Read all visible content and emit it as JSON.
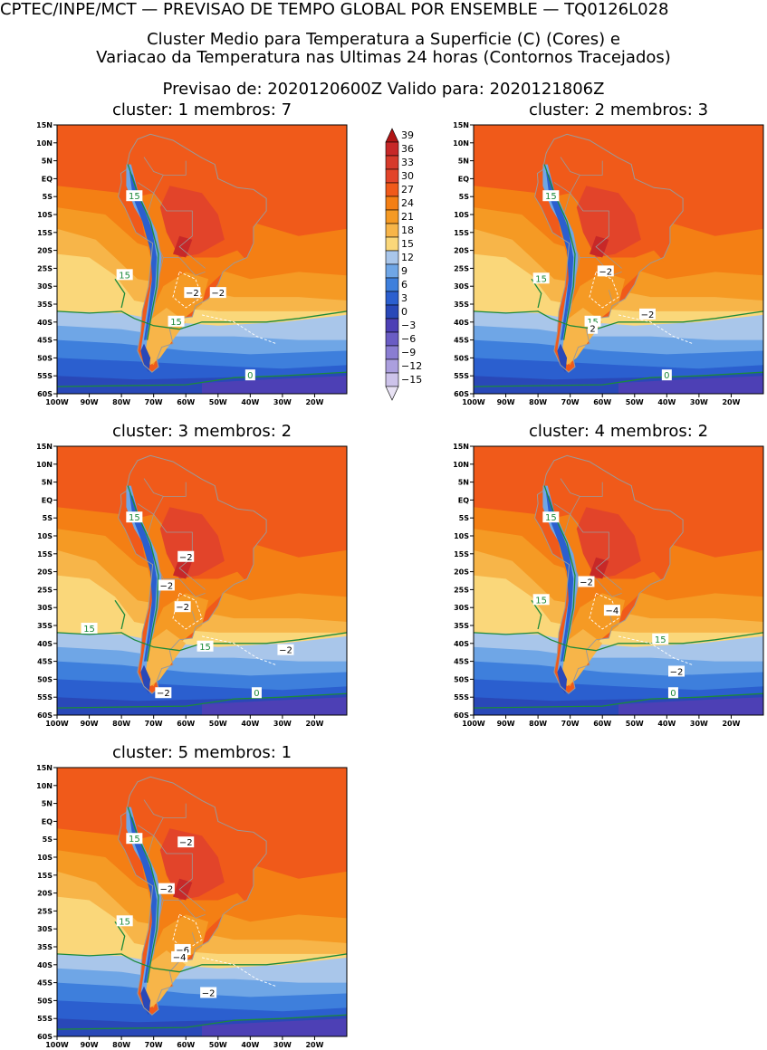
{
  "header": {
    "line1": "CPTEC/INPE/MCT — PREVISAO DE TEMPO GLOBAL POR ENSEMBLE — TQ0126L028",
    "line2": "Cluster Medio para Temperatura a Superficie (C) (Cores) e",
    "line3": "Variacao da Temperatura nas Ultimas 24 horas (Contornos Tracejados)",
    "line4": "Previsao de: 2020120600Z    Valido para: 2020121806Z"
  },
  "panels": [
    {
      "title": "cluster: 1   membros: 7",
      "labels": [
        {
          "t": "15",
          "lon": -76,
          "lat": -5
        },
        {
          "t": "15",
          "lon": -79,
          "lat": -27
        },
        {
          "t": "15",
          "lon": -63,
          "lat": -40
        },
        {
          "t": "0",
          "lon": -40,
          "lat": -55
        },
        {
          "t": "−2",
          "lon": -58,
          "lat": -32
        },
        {
          "t": "−2",
          "lon": -50,
          "lat": -32
        }
      ]
    },
    {
      "title": "cluster: 2   membros: 3",
      "labels": [
        {
          "t": "15",
          "lon": -76,
          "lat": -5
        },
        {
          "t": "15",
          "lon": -79,
          "lat": -28
        },
        {
          "t": "15",
          "lon": -63,
          "lat": -40
        },
        {
          "t": "0",
          "lon": -40,
          "lat": -55
        },
        {
          "t": "−2",
          "lon": -59,
          "lat": -26
        },
        {
          "t": "−2",
          "lon": -46,
          "lat": -38
        },
        {
          "t": "2",
          "lon": -63,
          "lat": -42
        }
      ]
    },
    {
      "title": "cluster: 3   membros: 2",
      "labels": [
        {
          "t": "15",
          "lon": -76,
          "lat": -5
        },
        {
          "t": "15",
          "lon": -90,
          "lat": -36
        },
        {
          "t": "15",
          "lon": -54,
          "lat": -41
        },
        {
          "t": "0",
          "lon": -38,
          "lat": -54
        },
        {
          "t": "−2",
          "lon": -60,
          "lat": -16
        },
        {
          "t": "−2",
          "lon": -66,
          "lat": -24
        },
        {
          "t": "−2",
          "lon": -61,
          "lat": -30
        },
        {
          "t": "−2",
          "lon": -29,
          "lat": -42
        },
        {
          "t": "−2",
          "lon": -67,
          "lat": -54
        }
      ]
    },
    {
      "title": "cluster: 4   membros: 2",
      "labels": [
        {
          "t": "15",
          "lon": -76,
          "lat": -5
        },
        {
          "t": "15",
          "lon": -79,
          "lat": -28
        },
        {
          "t": "15",
          "lon": -42,
          "lat": -39
        },
        {
          "t": "0",
          "lon": -38,
          "lat": -54
        },
        {
          "t": "−2",
          "lon": -65,
          "lat": -23
        },
        {
          "t": "−4",
          "lon": -57,
          "lat": -31
        },
        {
          "t": "−2",
          "lon": -37,
          "lat": -48
        }
      ]
    },
    {
      "title": "cluster: 5   membros: 1",
      "labels": [
        {
          "t": "15",
          "lon": -76,
          "lat": -5
        },
        {
          "t": "15",
          "lon": -79,
          "lat": -28
        },
        {
          "t": "−2",
          "lon": -60,
          "lat": -6
        },
        {
          "t": "−2",
          "lon": -66,
          "lat": -19
        },
        {
          "t": "−6",
          "lon": -61,
          "lat": -36
        },
        {
          "t": "−4",
          "lon": -62,
          "lat": -38
        },
        {
          "t": "−2",
          "lon": -53,
          "lat": -48
        }
      ]
    }
  ],
  "colorbar": {
    "levels": [
      "39",
      "36",
      "33",
      "30",
      "27",
      "24",
      "21",
      "18",
      "15",
      "12",
      "9",
      "6",
      "3",
      "0",
      "−3",
      "−6",
      "−9",
      "−12",
      "−15"
    ],
    "colors": [
      "#b01515",
      "#c72828",
      "#d63a2b",
      "#e2442a",
      "#f05a1a",
      "#f47f14",
      "#f59a24",
      "#f7b549",
      "#fad77a",
      "#a9c6ea",
      "#6fa6e6",
      "#3e7fdc",
      "#2b5fcf",
      "#2948b8",
      "#4d40b5",
      "#6a5cc4",
      "#8a7dd2",
      "#ab9fde",
      "#cdc3ea",
      "#e8e2f4"
    ]
  },
  "axes": {
    "lat_ticks": [
      "15N",
      "10N",
      "5N",
      "EQ",
      "5S",
      "10S",
      "15S",
      "20S",
      "25S",
      "30S",
      "35S",
      "40S",
      "45S",
      "50S",
      "55S",
      "60S"
    ],
    "lon_ticks": [
      "100W",
      "90W",
      "80W",
      "70W",
      "60W",
      "50W",
      "40W",
      "30W",
      "20W"
    ]
  }
}
